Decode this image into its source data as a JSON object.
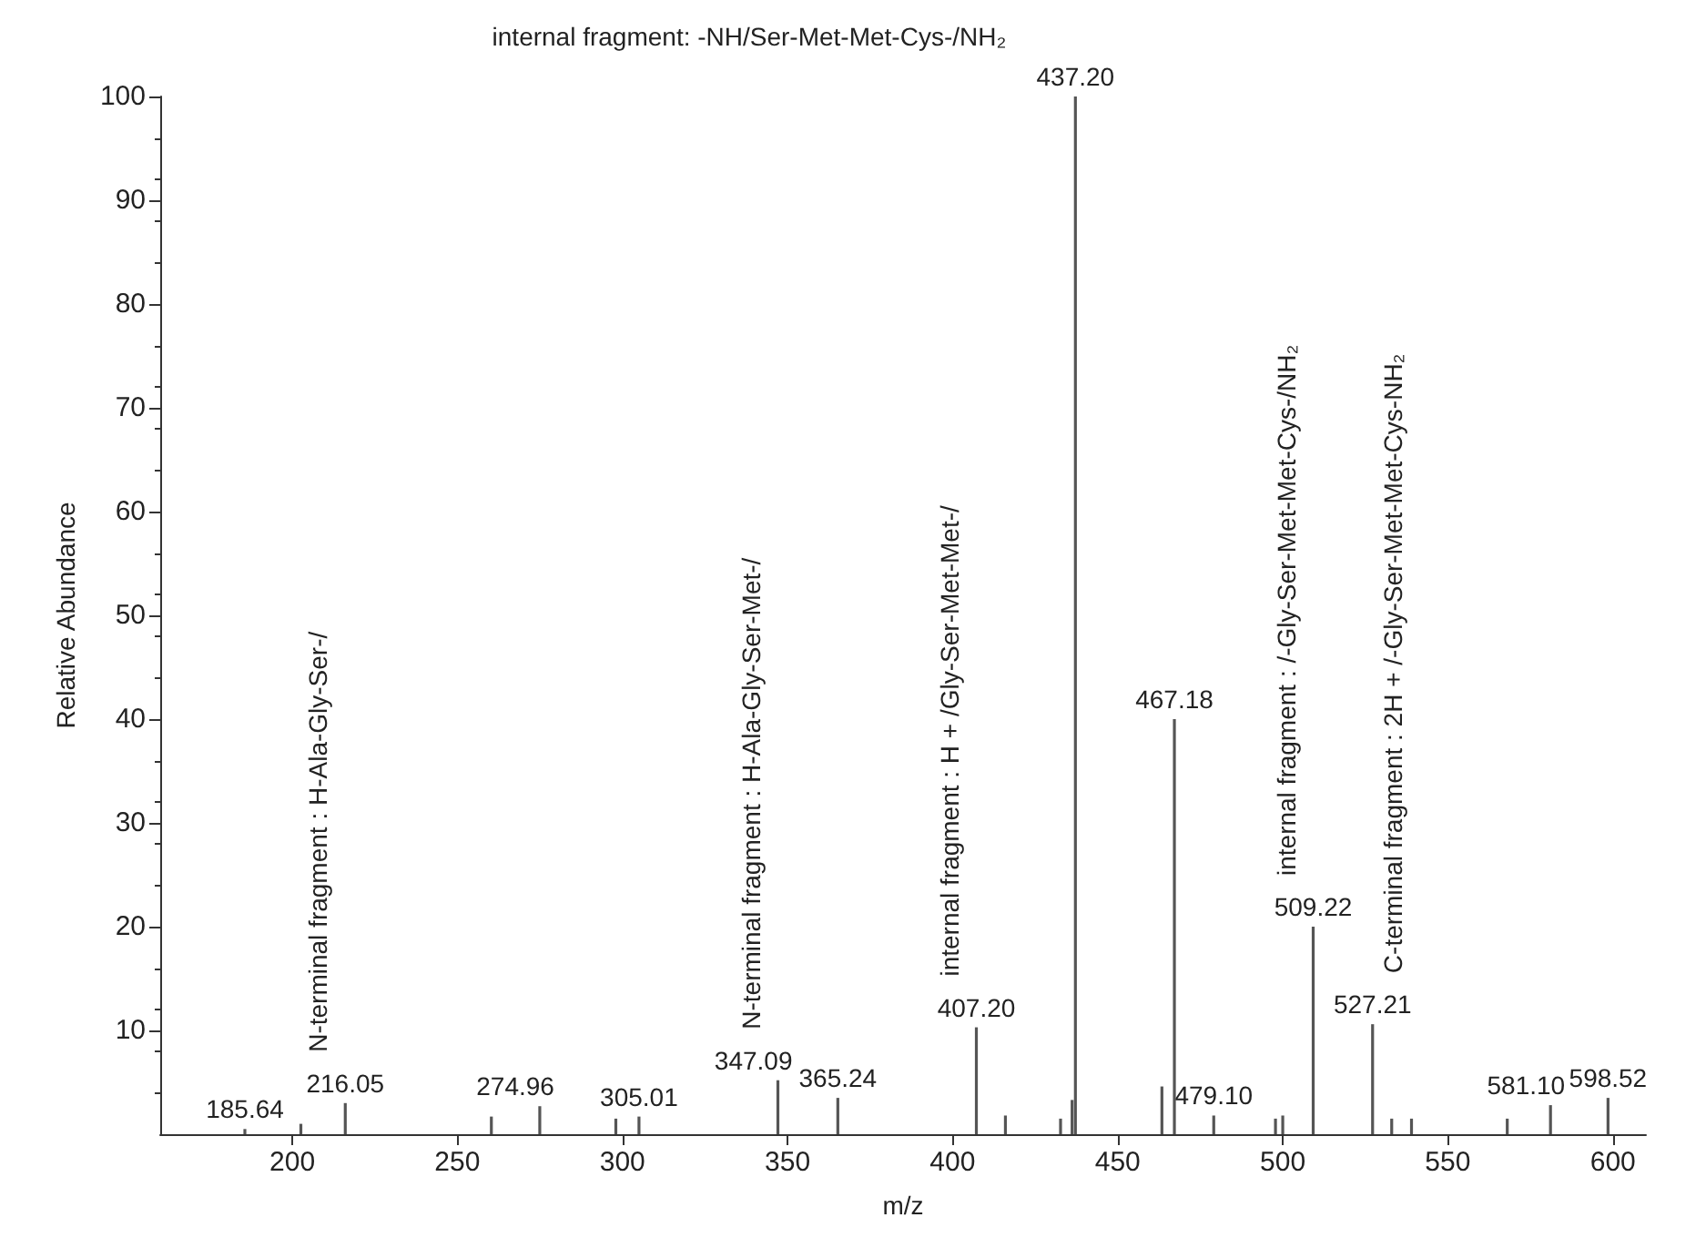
{
  "chart_data": {
    "type": "bar",
    "xlabel": "m/z",
    "ylabel": "Relative Abundance",
    "x": [
      185.64,
      202.6,
      216.05,
      260.3,
      274.96,
      298,
      305.01,
      347.09,
      365.24,
      407.2,
      416,
      432.7,
      436.2,
      437.2,
      463.4,
      467.18,
      479.1,
      497.8,
      500,
      509.22,
      527.21,
      533,
      539,
      568,
      581.1,
      598.52
    ],
    "values": [
      0.5,
      1,
      3,
      1.7,
      2.7,
      1.5,
      1.7,
      5.2,
      3.5,
      10.3,
      1.8,
      1.5,
      3.3,
      100,
      4.6,
      40,
      1.8,
      1.5,
      1.8,
      20,
      10.6,
      1.5,
      1.5,
      1.5,
      2.8,
      3.5
    ],
    "color": "#555555",
    "xlim": [
      160,
      610
    ],
    "xticks": [
      200,
      250,
      300,
      350,
      400,
      450,
      500,
      550,
      600
    ],
    "ylim": [
      0,
      100
    ],
    "yticks": [
      10,
      20,
      30,
      40,
      50,
      60,
      70,
      80,
      90,
      100
    ],
    "grid": false,
    "annotations": [
      {
        "text": "185.64",
        "x": 185.64,
        "y": 0.5
      },
      {
        "text": "216.05",
        "x": 216.05,
        "y": 3
      },
      {
        "text": "274.96",
        "x": 274.96,
        "y": 2.7
      },
      {
        "text": "305.01",
        "x": 305.01,
        "y": 1.7
      },
      {
        "text": "347.09",
        "x": 347.09,
        "y": 5.2
      },
      {
        "text": "365.24",
        "x": 365.24,
        "y": 3.5
      },
      {
        "text": "407.20",
        "x": 407.2,
        "y": 10.3
      },
      {
        "text": "437.20",
        "x": 437.2,
        "y": 100
      },
      {
        "text": "467.18",
        "x": 467.18,
        "y": 40
      },
      {
        "text": "479.10",
        "x": 479.1,
        "y": 1.8
      },
      {
        "text": "509.22",
        "x": 509.22,
        "y": 20
      },
      {
        "text": "527.21",
        "x": 527.21,
        "y": 10.6
      },
      {
        "text": "581.10",
        "x": 581.1,
        "y": 2.8
      },
      {
        "text": "598.52",
        "x": 598.52,
        "y": 3.5
      },
      {
        "text": "N-terminal fragment : H-Ala-Gly-Ser-/",
        "x": 216.05,
        "y": 3
      },
      {
        "text": "N-terminal fragment : H-Ala-Gly-Ser-Met-/",
        "x": 347.09,
        "y": 5.2
      },
      {
        "text": "internal fragment : H + /Gly-Ser-Met-Met-/",
        "x": 407.2,
        "y": 10.3
      },
      "internal fragment: -NH/Ser-Met-Met-Cys-/NH₂",
      {
        "text": "internal fragment : /-Gly-Ser-Met-Met-Cys-/NH₂",
        "x": 509.22,
        "y": 20
      },
      {
        "text": "C-terminal fragment : 2H + /-Gly-Ser-Met-Met-Cys-NH₂",
        "x": 527.21,
        "y": 10.6
      }
    ]
  }
}
